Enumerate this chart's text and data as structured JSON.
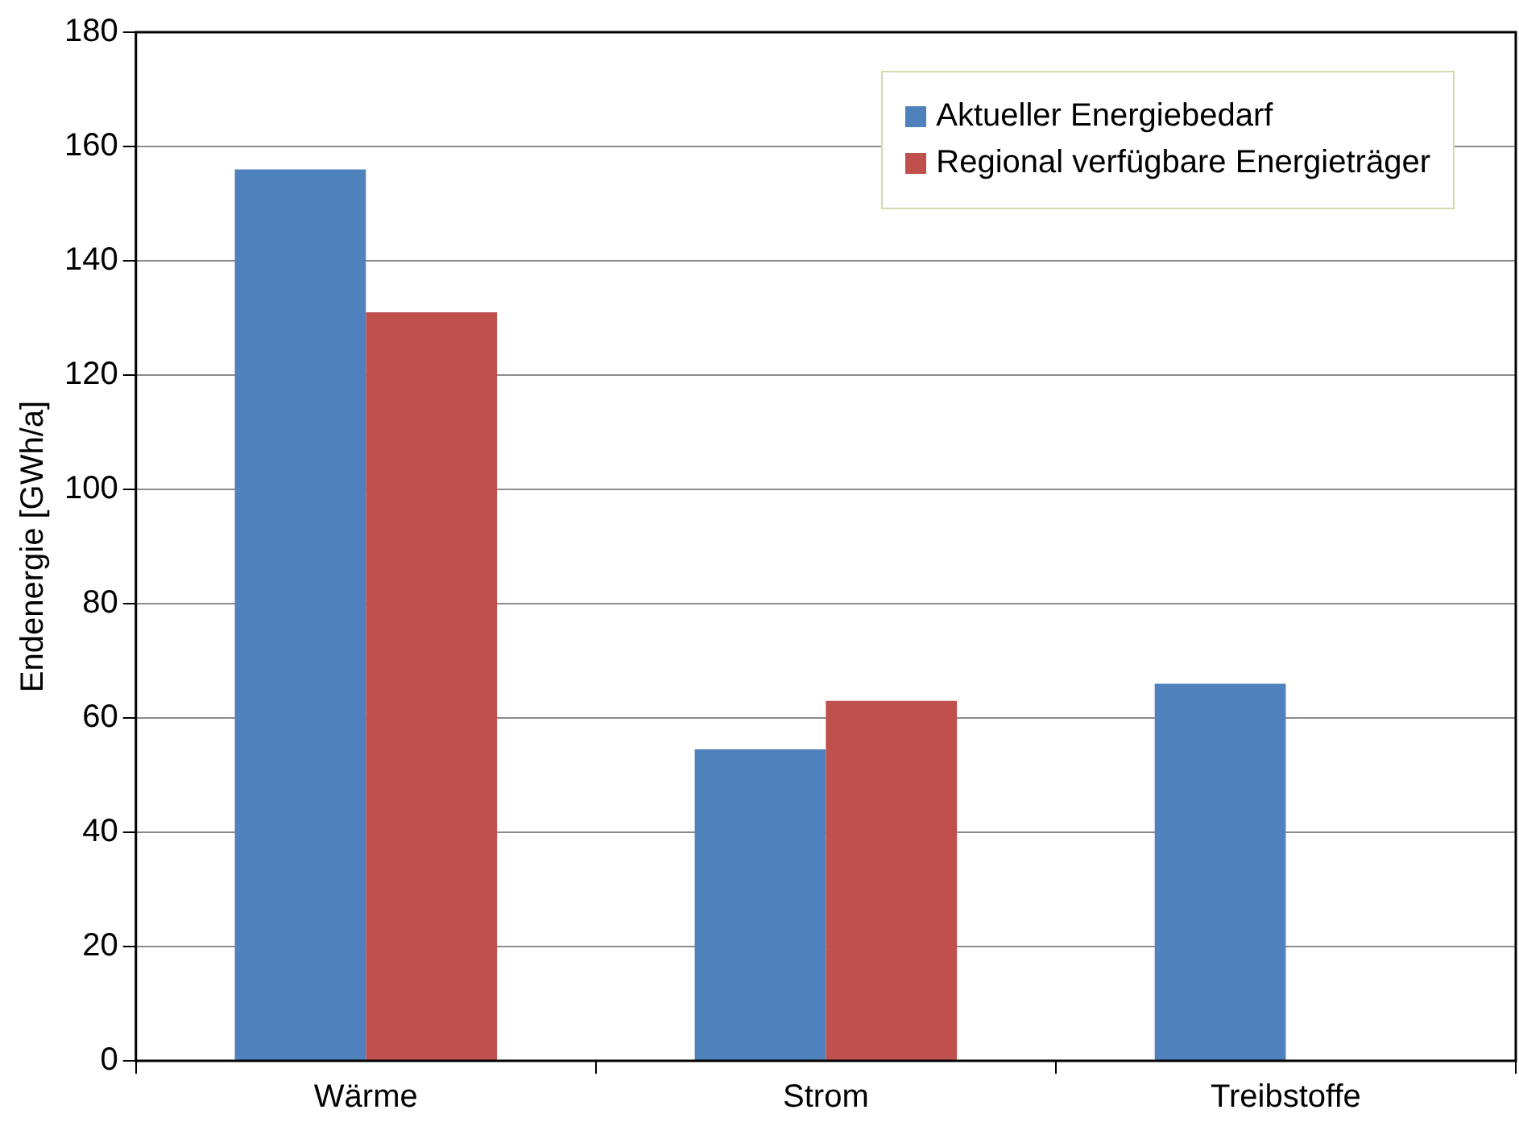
{
  "chart_data": {
    "type": "bar",
    "ylabel": "Endenergie [GWh/a]",
    "categories": [
      "Wärme",
      "Strom",
      "Treibstoffe"
    ],
    "series": [
      {
        "name": "Aktueller Energiebedarf",
        "color": "#4f81bd",
        "values": [
          156,
          54.5,
          66
        ]
      },
      {
        "name": "Regional verfügbare Energieträger",
        "color": "#c0504d",
        "values": [
          131,
          63,
          null
        ]
      }
    ],
    "ylim": [
      0,
      180
    ],
    "yticks": [
      0,
      20,
      40,
      60,
      80,
      100,
      120,
      140,
      160,
      180
    ],
    "grid": "y",
    "legend": "top right"
  }
}
